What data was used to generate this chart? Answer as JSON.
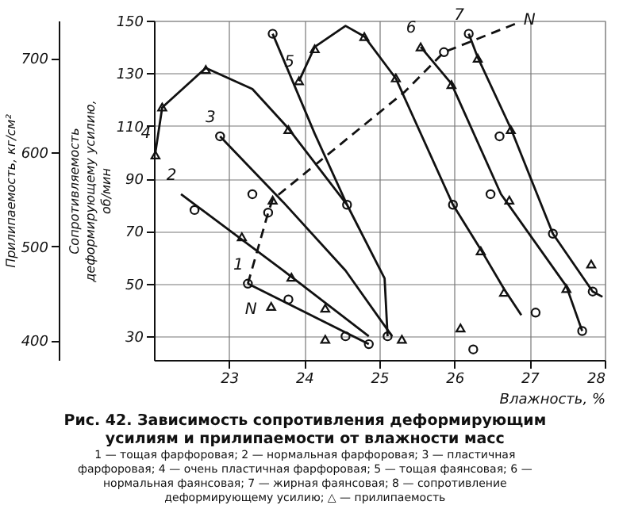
{
  "chart_data": {
    "type": "line",
    "title": "Рис. 42. Зависимость сопротивления деформирующим усилиям и прилипаемости от влажности масс",
    "xlabel": "Влажность, %",
    "ylabel": "Сопротивляемость деформирующему усилию, об/мин",
    "y2label": "Прилипаемость, кг/см²",
    "xlim": [
      22,
      28
    ],
    "xticks": [
      23,
      24,
      25,
      26,
      27,
      28
    ],
    "ylim": [
      21,
      150
    ],
    "yticks": [
      30,
      50,
      70,
      90,
      110,
      130,
      150
    ],
    "y2lim": [
      379,
      740
    ],
    "y2ticks": [
      400,
      500,
      600,
      700
    ],
    "grid": true,
    "annotations": [
      {
        "text": "N",
        "x": 23.25,
        "y": 50
      },
      {
        "text": "N",
        "x": 26.83,
        "y": 149
      },
      "1 — тощая фарфоровая; 2 — нормальная фарфоровая; 3 — пластичная фарфоровая; 4 — очень пластичная фарфоровая; 5 — тощая фаянсовая; 6 — нормальная фаянсовая; 7 — жирная фаянсовая; 8 — сопротивление деформирующему усилию; △ — прилипаемость"
    ],
    "series": [
      {
        "name": "1",
        "type": "line",
        "color": "#111111",
        "marker": "none",
        "line_style": "solid",
        "x": [
          23.25,
          24.86
        ],
        "values": [
          50,
          27
        ]
      },
      {
        "name": "2",
        "type": "line",
        "color": "#111111",
        "marker": "none",
        "line_style": "solid",
        "x": [
          22.36,
          23.72,
          24.86
        ],
        "values": [
          84,
          55,
          30
        ]
      },
      {
        "name": "3",
        "type": "line",
        "color": "#111111",
        "marker": "none",
        "line_style": "solid",
        "x": [
          22.88,
          23.72,
          24.55,
          25.17
        ],
        "values": [
          106,
          81,
          55,
          30
        ]
      },
      {
        "name": "4",
        "type": "line",
        "color": "#111111",
        "marker": "none",
        "line_style": "solid",
        "x": [
          22.02,
          22.11,
          22.69,
          23.31,
          23.79,
          24.57,
          25.07,
          25.11
        ],
        "values": [
          100,
          117,
          132,
          124,
          109,
          80,
          52,
          30
        ]
      },
      {
        "type": "line",
        "color": "#111111",
        "marker": "none",
        "line_style": "solid",
        "x": [
          23.58,
          24.14,
          24.57
        ],
        "values": [
          145,
          107,
          80
        ]
      },
      {
        "name": "5",
        "type": "line",
        "color": "#111111",
        "marker": "none",
        "line_style": "solid",
        "x": [
          23.93,
          24.14,
          24.55,
          24.8,
          25.22,
          25.98,
          26.35,
          26.66,
          26.89
        ],
        "values": [
          127,
          140,
          148,
          144,
          128,
          80,
          63,
          48,
          38
        ]
      },
      {
        "name": "6",
        "type": "line",
        "color": "#111111",
        "marker": "none",
        "line_style": "solid",
        "x": [
          25.55,
          25.96,
          26.62,
          27.49,
          27.7
        ],
        "values": [
          140,
          126,
          84,
          49,
          32
        ]
      },
      {
        "name": "7",
        "type": "line",
        "color": "#111111",
        "marker": "none",
        "line_style": "solid",
        "x": [
          26.19,
          26.31,
          26.75,
          27.31,
          27.84,
          27.97
        ],
        "values": [
          145,
          136,
          109,
          69,
          47,
          45
        ]
      },
      {
        "color": "#111111",
        "marker": "none",
        "line_style": "dashed",
        "x": [
          23.25,
          23.52,
          23.58,
          24.14,
          25.34,
          25.86,
          26.83
        ],
        "values": [
          50,
          77,
          82,
          95,
          123,
          138,
          149
        ]
      },
      {
        "type": "scatter",
        "color": "#111111",
        "marker": "circle",
        "x": [
          23.25,
          23.79,
          24.55,
          22.54,
          24.86,
          22.88,
          25.11,
          24.57,
          23.58,
          25.98,
          25.86,
          26.48,
          27.7,
          26.19,
          26.6,
          27.31,
          27.84,
          27.08,
          26.25,
          23.52,
          23.31
        ],
        "values": [
          50,
          44,
          30,
          78,
          27,
          106,
          30,
          80,
          145,
          80,
          138,
          84,
          32,
          145,
          106,
          69,
          47,
          39,
          25,
          77,
          84
        ]
      },
      {
        "type": "scatter",
        "axis": "y2",
        "color": "#111111",
        "marker": "triangle",
        "x": [
          23.56,
          24.28,
          23.17,
          23.83,
          24.28,
          25.3,
          22.02,
          22.11,
          22.69,
          23.79,
          23.93,
          24.14,
          24.8,
          25.22,
          26.35,
          26.66,
          26.08,
          25.55,
          25.96,
          26.73,
          27.49,
          26.31,
          26.75,
          27.82,
          23.58
        ],
        "values": [
          436,
          401,
          510,
          467,
          434,
          401,
          597,
          648,
          688,
          624,
          676,
          710,
          723,
          679,
          495,
          451,
          413,
          712,
          672,
          549,
          455,
          700,
          624,
          481,
          549
        ]
      }
    ]
  }
}
